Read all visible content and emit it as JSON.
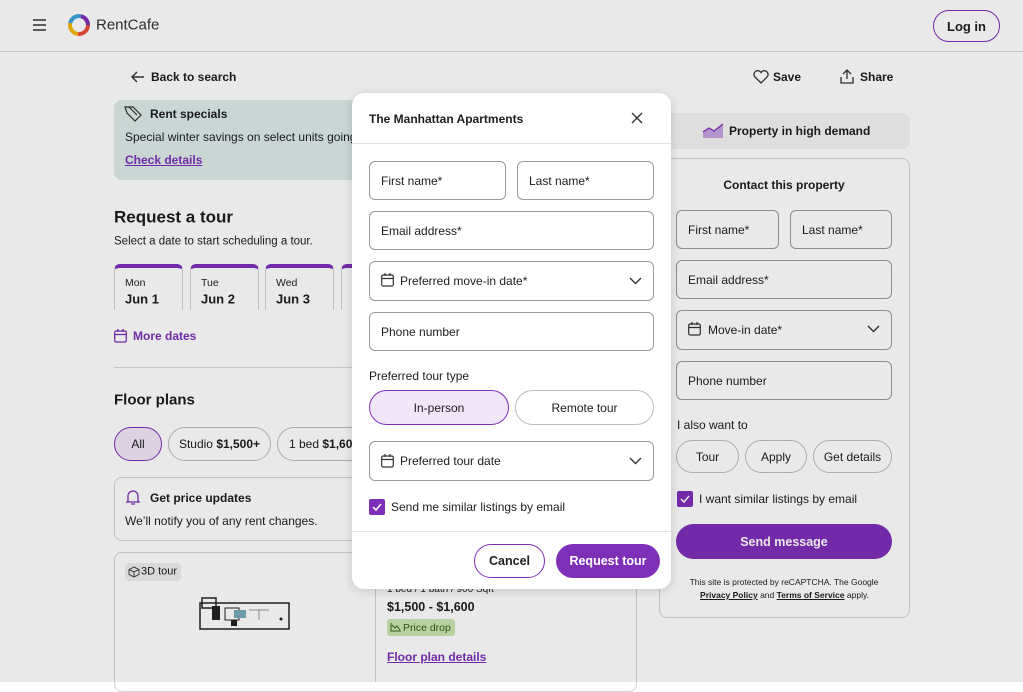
{
  "header": {
    "brand": "RentCafe",
    "login": "Log in"
  },
  "nav": {
    "back": "Back to search",
    "save": "Save",
    "share": "Share"
  },
  "specials": {
    "title": "Rent specials",
    "text": "Special winter savings on select units going",
    "link": "Check details"
  },
  "tour": {
    "title": "Request a tour",
    "subtitle": "Select a date to start scheduling a tour.",
    "dates": [
      {
        "day": "Mon",
        "date": "Jun 1"
      },
      {
        "day": "Tue",
        "date": "Jun 2"
      },
      {
        "day": "Wed",
        "date": "Jun 3"
      }
    ],
    "more": "More dates"
  },
  "floor_plans": {
    "title": "Floor plans",
    "filters": [
      {
        "label": "All"
      },
      {
        "label": "Studio",
        "price": "$1,500+"
      },
      {
        "label": "1 bed",
        "price": "$1,60"
      }
    ]
  },
  "price_alert": {
    "title": "Get price updates",
    "text": "We’ll notify you of any rent changes."
  },
  "listing": {
    "badge": "3D tour",
    "specs": "1 bed / 1 bath / 900 Sqft",
    "price": "$1,500 - $1,600",
    "tag": "Price drop",
    "link": "Floor plan details"
  },
  "sidebar": {
    "demand": "Property in high demand",
    "title": "Contact this property",
    "fields": {
      "first": "First name*",
      "last": "Last name*",
      "email": "Email address*",
      "move_in": "Move-in date*",
      "phone": "Phone number"
    },
    "also": "I also want to",
    "options": [
      "Tour",
      "Apply",
      "Get details"
    ],
    "opt_in": "I want similar listings by email",
    "submit": "Send message",
    "recaptcha": {
      "text": "This site is protected by reCAPTCHA. The Google",
      "privacy": "Privacy Policy",
      "and": "and",
      "terms": "Terms of Service",
      "end": "apply."
    }
  },
  "modal": {
    "title": "The Manhattan Apartments",
    "fields": {
      "first": "First name*",
      "last": "Last name*",
      "email": "Email address*",
      "move_in": "Preferred move-in date*",
      "phone": "Phone number"
    },
    "tour_type_label": "Preferred tour type",
    "tour_types": [
      "In-person",
      "Remote tour"
    ],
    "tour_date": "Preferred tour date",
    "opt_in": "Send me similar listings by email",
    "cancel": "Cancel",
    "submit": "Request tour"
  }
}
